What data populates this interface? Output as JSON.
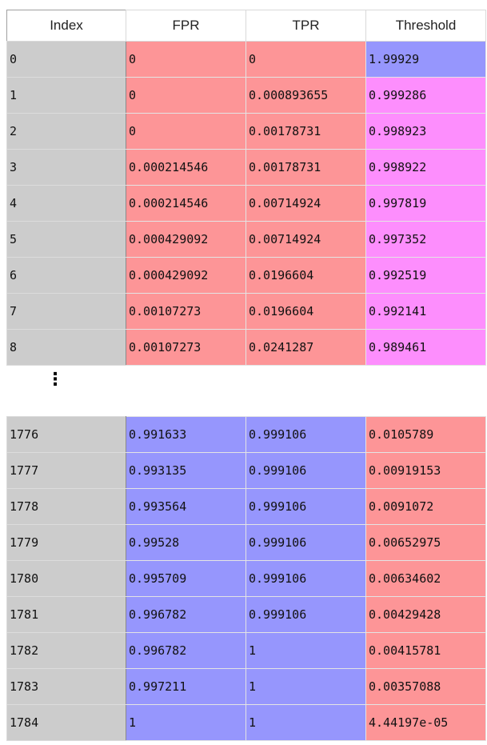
{
  "colors": {
    "red": "#fd9597",
    "blue": "#9696fd",
    "pink": "#fd8efd",
    "index_gray": "#cccccc"
  },
  "headers": [
    "Index",
    "FPR",
    "TPR",
    "Threshold"
  ],
  "top_rows": [
    {
      "index": "0",
      "fpr": "0",
      "tpr": "0",
      "thr": "1.99929",
      "colors": [
        "red",
        "red",
        "blue"
      ]
    },
    {
      "index": "1",
      "fpr": "0",
      "tpr": "0.000893655",
      "thr": "0.999286",
      "colors": [
        "red",
        "red",
        "pink"
      ]
    },
    {
      "index": "2",
      "fpr": "0",
      "tpr": "0.00178731",
      "thr": "0.998923",
      "colors": [
        "red",
        "red",
        "pink"
      ]
    },
    {
      "index": "3",
      "fpr": "0.000214546",
      "tpr": "0.00178731",
      "thr": "0.998922",
      "colors": [
        "red",
        "red",
        "pink"
      ]
    },
    {
      "index": "4",
      "fpr": "0.000214546",
      "tpr": "0.00714924",
      "thr": "0.997819",
      "colors": [
        "red",
        "red",
        "pink"
      ]
    },
    {
      "index": "5",
      "fpr": "0.000429092",
      "tpr": "0.00714924",
      "thr": "0.997352",
      "colors": [
        "red",
        "red",
        "pink"
      ]
    },
    {
      "index": "6",
      "fpr": "0.000429092",
      "tpr": "0.0196604",
      "thr": "0.992519",
      "colors": [
        "red",
        "red",
        "pink"
      ]
    },
    {
      "index": "7",
      "fpr": "0.00107273",
      "tpr": "0.0196604",
      "thr": "0.992141",
      "colors": [
        "red",
        "red",
        "pink"
      ]
    },
    {
      "index": "8",
      "fpr": "0.00107273",
      "tpr": "0.0241287",
      "thr": "0.989461",
      "colors": [
        "red",
        "red",
        "pink"
      ]
    }
  ],
  "ellipsis": "⋮",
  "bottom_rows": [
    {
      "index": "1776",
      "fpr": "0.991633",
      "tpr": "0.999106",
      "thr": "0.0105789",
      "colors": [
        "blue",
        "blue",
        "red"
      ]
    },
    {
      "index": "1777",
      "fpr": "0.993135",
      "tpr": "0.999106",
      "thr": "0.00919153",
      "colors": [
        "blue",
        "blue",
        "red"
      ]
    },
    {
      "index": "1778",
      "fpr": "0.993564",
      "tpr": "0.999106",
      "thr": "0.0091072",
      "colors": [
        "blue",
        "blue",
        "red"
      ]
    },
    {
      "index": "1779",
      "fpr": "0.99528",
      "tpr": "0.999106",
      "thr": "0.00652975",
      "colors": [
        "blue",
        "blue",
        "red"
      ]
    },
    {
      "index": "1780",
      "fpr": "0.995709",
      "tpr": "0.999106",
      "thr": "0.00634602",
      "colors": [
        "blue",
        "blue",
        "red"
      ]
    },
    {
      "index": "1781",
      "fpr": "0.996782",
      "tpr": "0.999106",
      "thr": "0.00429428",
      "colors": [
        "blue",
        "blue",
        "red"
      ]
    },
    {
      "index": "1782",
      "fpr": "0.996782",
      "tpr": "1",
      "thr": "0.00415781",
      "colors": [
        "blue",
        "blue",
        "red"
      ]
    },
    {
      "index": "1783",
      "fpr": "0.997211",
      "tpr": "1",
      "thr": "0.00357088",
      "colors": [
        "blue",
        "blue",
        "red"
      ]
    },
    {
      "index": "1784",
      "fpr": "1",
      "tpr": "1",
      "thr": "4.44197e-05",
      "colors": [
        "blue",
        "blue",
        "red"
      ]
    }
  ]
}
